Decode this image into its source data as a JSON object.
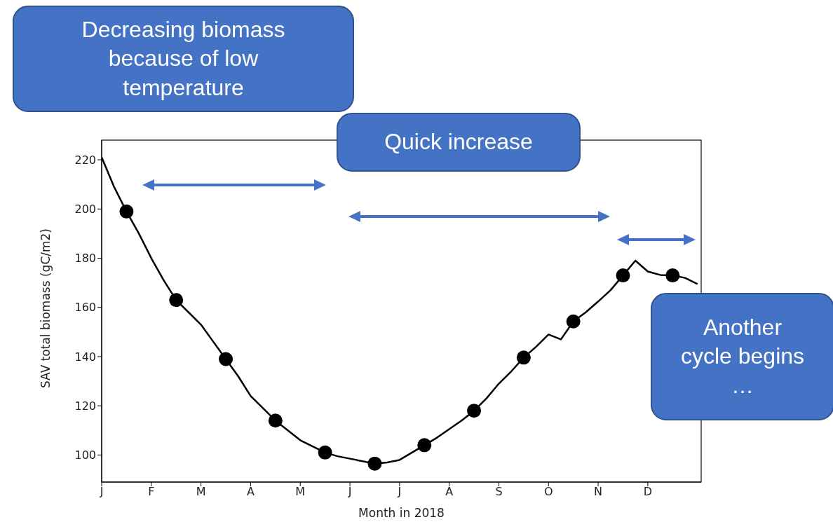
{
  "chart_data": {
    "type": "line",
    "xlabel": "Month in 2018",
    "ylabel": "SAV total biomass (gC/m2)",
    "annotations": [
      "Decreasing biomass because of low temperature",
      "Quick increase",
      "Another cycle begins …"
    ],
    "categories": [
      "J",
      null,
      null,
      null,
      "F",
      null,
      null,
      null,
      "M",
      null,
      null,
      null,
      "A",
      null,
      null,
      null,
      "M",
      null,
      null,
      null,
      "J",
      null,
      null,
      null,
      "J",
      null,
      null,
      null,
      "A",
      null,
      null,
      null,
      "S",
      null,
      null,
      null,
      "O",
      null,
      null,
      null,
      "N",
      null,
      null,
      null,
      "D",
      null,
      null,
      null,
      null
    ],
    "ylim": [
      89,
      228
    ],
    "yticks": [
      100,
      120,
      140,
      160,
      180,
      200,
      220
    ],
    "grid": false,
    "legend": false,
    "series": [
      {
        "color": "#000000",
        "marker": "none",
        "values": [
          221,
          209,
          199,
          190,
          180,
          171,
          163,
          158,
          153,
          146,
          139,
          132,
          124,
          119,
          114,
          110,
          106,
          103.5,
          101,
          99.5,
          98.5,
          97.5,
          96.5,
          97,
          98,
          101,
          104,
          107,
          110.5,
          114,
          118,
          123,
          129,
          134,
          139.6,
          144,
          149,
          147,
          154.3,
          158,
          162.4,
          167,
          173,
          179,
          174.6,
          173.2,
          173,
          172,
          169.5
        ]
      },
      {
        "type": "scatter",
        "color": "#000000",
        "marker": "circle",
        "values": [
          null,
          null,
          199,
          null,
          null,
          null,
          163,
          null,
          null,
          null,
          139,
          null,
          null,
          null,
          114,
          null,
          null,
          null,
          101,
          null,
          null,
          null,
          96.5,
          null,
          null,
          null,
          104,
          null,
          null,
          null,
          118,
          null,
          null,
          null,
          139.6,
          null,
          null,
          null,
          154.3,
          null,
          null,
          null,
          173,
          null,
          null,
          null,
          173,
          null,
          null
        ]
      }
    ]
  }
}
